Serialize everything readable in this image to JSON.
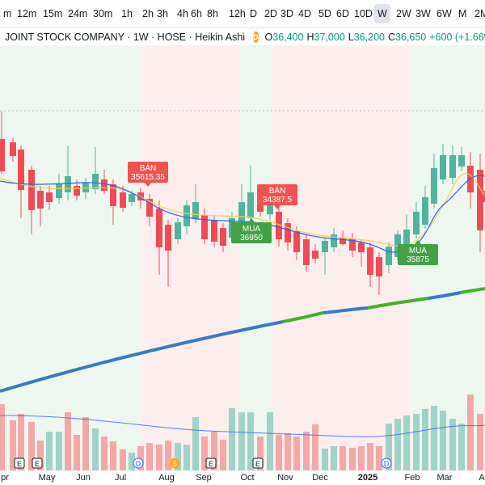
{
  "timeframes": [
    {
      "label": "m",
      "active": false
    },
    {
      "label": "12m",
      "active": false
    },
    {
      "label": "15m",
      "active": false
    },
    {
      "label": "24m",
      "active": false
    },
    {
      "label": "30m",
      "active": false
    },
    {
      "label": "1h",
      "active": false
    },
    {
      "label": "2h",
      "active": false
    },
    {
      "label": "3h",
      "active": false
    },
    {
      "label": "4h",
      "active": false
    },
    {
      "label": "6h",
      "active": false
    },
    {
      "label": "8h",
      "active": false
    },
    {
      "label": "12h",
      "active": false
    },
    {
      "label": "D",
      "active": false
    },
    {
      "label": "2D",
      "active": false
    },
    {
      "label": "3D",
      "active": false
    },
    {
      "label": "4D",
      "active": false
    },
    {
      "label": "5D",
      "active": false
    },
    {
      "label": "6D",
      "active": false
    },
    {
      "label": "10D",
      "active": false
    },
    {
      "label": "W",
      "active": true
    },
    {
      "label": "2W",
      "active": false
    },
    {
      "label": "3W",
      "active": false
    },
    {
      "label": "6W",
      "active": false
    },
    {
      "label": "M",
      "active": false
    },
    {
      "label": "2M",
      "active": false
    },
    {
      "label": "3",
      "active": false
    }
  ],
  "legend": {
    "title": "JOINT STOCK COMPANY · 1W · HOSE · Heikin Ashi",
    "badge": "D",
    "o_label": "O",
    "o_value": "36,400",
    "h_label": "H",
    "h_value": "37,000",
    "l_label": "L",
    "l_value": "36,200",
    "c_label": "C",
    "c_value": "36,650",
    "change": "+600 (+1.66%)"
  },
  "colors": {
    "up": "#26a69a",
    "down": "#ef5350",
    "up_fill": "#4fb39e",
    "down_fill": "#ef4b55",
    "buy_zone": "#eef7ef",
    "sell_zone": "#fdeeee",
    "buy_signal": "#43a047",
    "sell_signal": "#ef5350",
    "ma_blue": "#2962ff",
    "ma_yellow": "#f2d04a",
    "long_ma_blue": "#3a78c4",
    "long_ma_green": "#43b02a"
  },
  "signals": [
    {
      "label": "BÁN",
      "price": "35615.35",
      "type": "sell"
    },
    {
      "label": "MUA",
      "price": "36950",
      "type": "buy"
    },
    {
      "label": "BÁN",
      "price": "34387.5",
      "type": "sell"
    },
    {
      "label": "MUA",
      "price": "35875",
      "type": "buy"
    }
  ],
  "x_axis": {
    "months": [
      "pr",
      "May",
      "Jun",
      "Jul",
      "Aug",
      "Sep",
      "Oct",
      "Nov",
      "Dec",
      "2025",
      "Feb",
      "Mar",
      "A"
    ]
  },
  "event_markers": [
    "E",
    "E",
    "D",
    "S",
    "E",
    "E",
    "D"
  ],
  "chart_data": {
    "type": "candlestick",
    "style": "Heikin Ashi",
    "interval": "1W",
    "exchange": "HOSE",
    "last": {
      "open": 36400,
      "high": 37000,
      "low": 36200,
      "close": 36650,
      "change": 600,
      "change_pct": 1.66
    },
    "price_axis_visible": false,
    "volume_pane": true
  }
}
